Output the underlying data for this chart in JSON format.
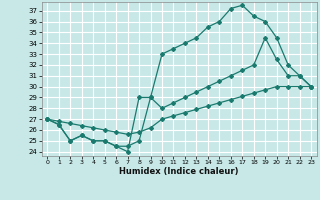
{
  "xlabel": "Humidex (Indice chaleur)",
  "bg_color": "#c8e8e8",
  "grid_color": "#ffffff",
  "line_color": "#1a7a6e",
  "xlim": [
    -0.5,
    23.5
  ],
  "ylim": [
    23.6,
    37.8
  ],
  "yticks": [
    24,
    25,
    26,
    27,
    28,
    29,
    30,
    31,
    32,
    33,
    34,
    35,
    36,
    37
  ],
  "xticks": [
    0,
    1,
    2,
    3,
    4,
    5,
    6,
    7,
    8,
    9,
    10,
    11,
    12,
    13,
    14,
    15,
    16,
    17,
    18,
    19,
    20,
    21,
    22,
    23
  ],
  "line1_x": [
    0,
    1,
    2,
    3,
    4,
    5,
    6,
    7,
    8,
    9,
    10,
    11,
    12,
    13,
    14,
    15,
    16,
    17,
    18,
    19,
    20,
    21,
    22,
    23
  ],
  "line1_y": [
    27,
    26.5,
    25,
    25.5,
    25,
    25,
    24.5,
    24,
    29,
    29,
    33,
    33.5,
    34,
    34.5,
    35.5,
    36,
    37.2,
    37.5,
    36.5,
    36,
    34.5,
    32,
    31,
    30
  ],
  "line2_x": [
    0,
    1,
    2,
    3,
    4,
    5,
    6,
    7,
    8,
    9,
    10,
    11,
    12,
    13,
    14,
    15,
    16,
    17,
    18,
    19,
    20,
    21,
    22,
    23
  ],
  "line2_y": [
    27,
    26.5,
    25,
    25.5,
    25,
    25,
    24.5,
    24.5,
    25,
    29,
    28,
    28.5,
    29,
    29.5,
    30,
    30.5,
    31,
    31.5,
    32,
    34.5,
    32.5,
    31,
    31,
    30
  ],
  "line3_x": [
    0,
    1,
    2,
    3,
    4,
    5,
    6,
    7,
    8,
    9,
    10,
    11,
    12,
    13,
    14,
    15,
    16,
    17,
    18,
    19,
    20,
    21,
    22,
    23
  ],
  "line3_y": [
    27,
    26.8,
    26.6,
    26.4,
    26.2,
    26.0,
    25.8,
    25.6,
    25.8,
    26.2,
    27.0,
    27.3,
    27.6,
    27.9,
    28.2,
    28.5,
    28.8,
    29.1,
    29.4,
    29.7,
    30.0,
    30.0,
    30.0,
    30.0
  ]
}
